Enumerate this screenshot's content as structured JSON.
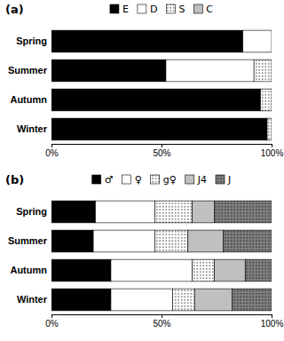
{
  "chart_data": [
    {
      "type": "bar",
      "orientation": "horizontal",
      "stacked": true,
      "legend": "top",
      "grid": false,
      "annotations": [
        {
          "text": "(a)"
        }
      ],
      "categories": [
        "Spring",
        "Summer",
        "Autumn",
        "Winter"
      ],
      "series": [
        {
          "name": "E",
          "color": "black",
          "values": [
            87,
            52,
            95,
            98
          ]
        },
        {
          "name": "D",
          "color": "white",
          "values": [
            13,
            40,
            0,
            0
          ]
        },
        {
          "name": "S",
          "color": "white",
          "values": [
            0,
            8,
            5,
            2
          ]
        },
        {
          "name": "C",
          "color": "#c0c0c0",
          "values": [
            0,
            0,
            0,
            0
          ]
        }
      ],
      "xlim": [
        0,
        100
      ],
      "xticks": [
        {
          "value": 0,
          "label": "0%"
        },
        {
          "value": 50,
          "label": "50%"
        },
        {
          "value": 100,
          "label": "100%"
        }
      ]
    },
    {
      "type": "bar",
      "orientation": "horizontal",
      "stacked": true,
      "legend": "top",
      "grid": false,
      "annotations": [
        {
          "text": "(b)"
        }
      ],
      "categories": [
        "Spring",
        "Summer",
        "Autumn",
        "Winter"
      ],
      "series": [
        {
          "name": "♂",
          "color": "black",
          "values": [
            20,
            19,
            27,
            27
          ]
        },
        {
          "name": "♀",
          "color": "white",
          "values": [
            27,
            28,
            37,
            28
          ]
        },
        {
          "name": "g♀",
          "color": "white",
          "values": [
            17,
            15,
            10,
            10
          ]
        },
        {
          "name": "J4",
          "color": "#c0c0c0",
          "values": [
            10,
            16,
            14,
            17
          ]
        },
        {
          "name": "J",
          "color": "#808080",
          "values": [
            26,
            22,
            12,
            18
          ]
        }
      ],
      "xlim": [
        0,
        100
      ],
      "xticks": [
        {
          "value": 0,
          "label": "0%"
        },
        {
          "value": 50,
          "label": "50%"
        },
        {
          "value": 100,
          "label": "100%"
        }
      ]
    }
  ]
}
